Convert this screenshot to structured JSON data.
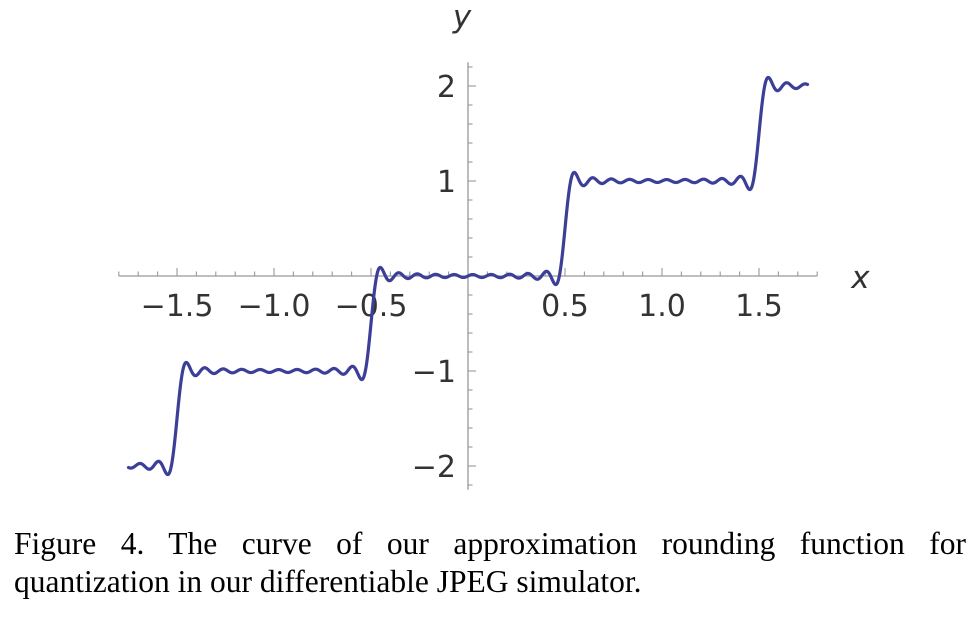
{
  "chart_data": {
    "type": "line",
    "title": "",
    "xlabel": "x",
    "ylabel": "y",
    "xlim": [
      -1.8,
      1.8
    ],
    "ylim": [
      -2.25,
      2.25
    ],
    "x_ticks": [
      {
        "value": -1.5,
        "label": "−1.5"
      },
      {
        "value": -1.0,
        "label": "−1.0"
      },
      {
        "value": -0.5,
        "label": "−0.5"
      },
      {
        "value": 0.5,
        "label": "0.5"
      },
      {
        "value": 1.0,
        "label": "1.0"
      },
      {
        "value": 1.5,
        "label": "1.5"
      }
    ],
    "y_ticks": [
      {
        "value": 2,
        "label": "2"
      },
      {
        "value": 1,
        "label": "1"
      },
      {
        "value": -1,
        "label": "−1"
      },
      {
        "value": -2,
        "label": "−2"
      }
    ],
    "series": [
      {
        "function": "x - sum_{k=1}^{10} (-1)^(k+1) * sin(2*pi*k*x) / (pi*k)",
        "x_range": [
          -1.75,
          1.75
        ],
        "color": "#3b3f98"
      }
    ]
  },
  "caption": {
    "text": "Figure 4. The curve of our approximation rounding function for quantization in our differentiable JPEG simulator."
  }
}
